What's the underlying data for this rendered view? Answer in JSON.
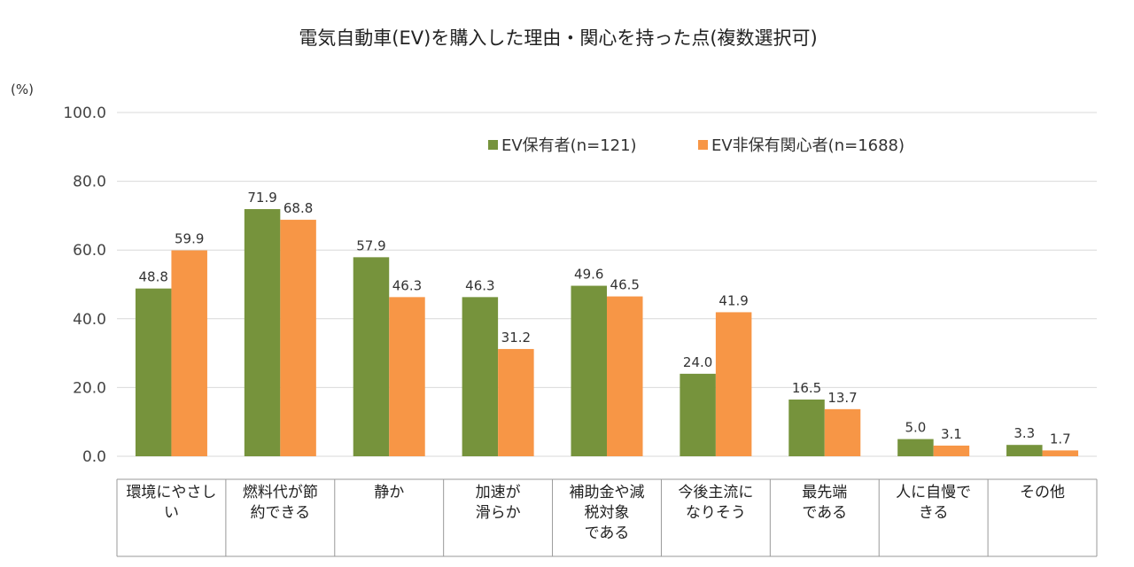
{
  "chart_data": {
    "type": "bar",
    "title": "電気自動車(EV)を購入した理由・関心を持った点(複数選択可)",
    "ylabel": "(%)",
    "xlabel": "",
    "ylim": [
      0,
      100
    ],
    "yticks": [
      "0.0",
      "20.0",
      "40.0",
      "60.0",
      "80.0",
      "100.0"
    ],
    "grid": true,
    "legend_position": "top-right",
    "categories": [
      [
        "環境にやさし",
        "い"
      ],
      [
        "燃料代が節",
        "約できる"
      ],
      [
        "静か"
      ],
      [
        "加速が",
        "滑らか"
      ],
      [
        "補助金や減",
        "税対象",
        "である"
      ],
      [
        "今後主流に",
        "なりそう"
      ],
      [
        "最先端",
        "である"
      ],
      [
        "人に自慢で",
        "きる"
      ],
      [
        "その他"
      ]
    ],
    "series": [
      {
        "name": "EV保有者(n=121)",
        "color": "#76933c",
        "values": [
          48.8,
          71.9,
          57.9,
          46.3,
          49.6,
          24.0,
          16.5,
          5.0,
          3.3
        ],
        "labels": [
          "48.8",
          "71.9",
          "57.9",
          "46.3",
          "49.6",
          "24.0",
          "16.5",
          "5.0",
          "3.3"
        ]
      },
      {
        "name": "EV非保有関心者(n=1688)",
        "color": "#f79646",
        "values": [
          59.9,
          68.8,
          46.3,
          31.2,
          46.5,
          41.9,
          13.7,
          3.1,
          1.7
        ],
        "labels": [
          "59.9",
          "68.8",
          "46.3",
          "31.2",
          "46.5",
          "41.9",
          "13.7",
          "3.1",
          "1.7"
        ]
      }
    ]
  }
}
